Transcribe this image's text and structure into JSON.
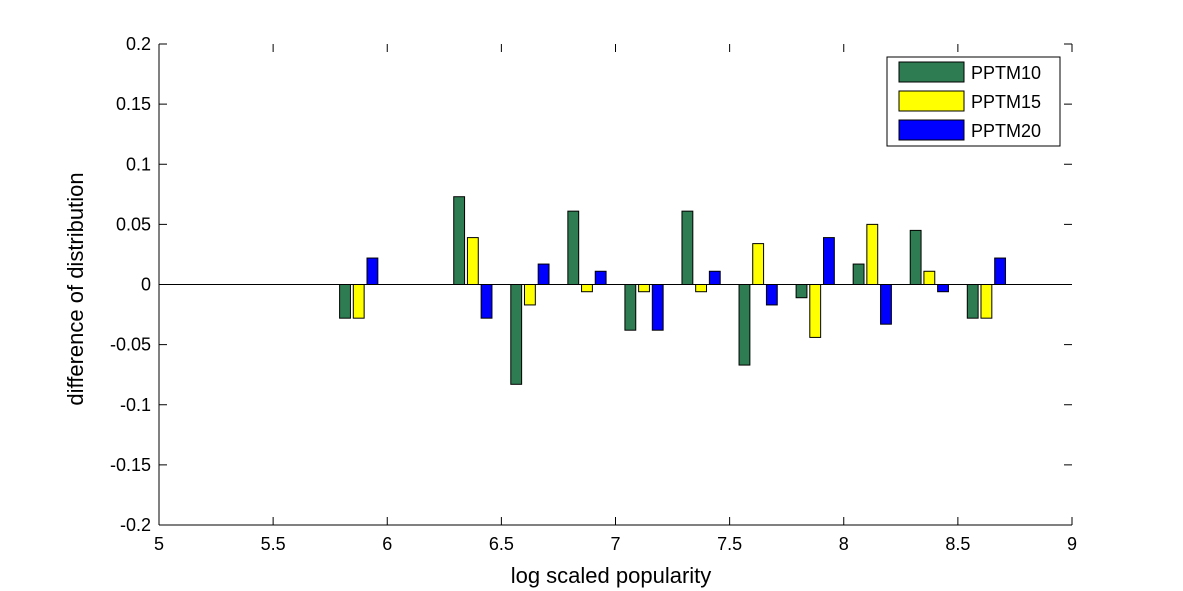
{
  "chart_data": {
    "type": "bar",
    "xlabel": "log scaled popularity",
    "ylabel": "difference of distribution",
    "xlim": [
      5,
      9
    ],
    "ylim": [
      -0.2,
      0.2
    ],
    "xticks": [
      "5",
      "5.5",
      "6",
      "6.5",
      "7",
      "7.5",
      "8",
      "8.5",
      "9"
    ],
    "yticks": [
      "-0.2",
      "-0.15",
      "-0.1",
      "-0.05",
      "0",
      "0.05",
      "0.1",
      "0.15",
      "0.2"
    ],
    "grid": false,
    "legend_position": "top-right",
    "x": [
      5.875,
      6.375,
      6.625,
      6.875,
      7.125,
      7.375,
      7.625,
      7.875,
      8.125,
      8.375,
      8.625
    ],
    "series": [
      {
        "name": "PPTM10",
        "color": "#2e7d52",
        "values": [
          -0.028,
          0.073,
          -0.083,
          0.061,
          -0.038,
          0.061,
          -0.067,
          -0.011,
          0.017,
          0.045,
          -0.028
        ]
      },
      {
        "name": "PPTM15",
        "color": "#ffff00",
        "values": [
          -0.028,
          0.039,
          -0.017,
          -0.006,
          -0.006,
          -0.006,
          0.034,
          -0.044,
          0.05,
          0.011,
          -0.028
        ]
      },
      {
        "name": "PPTM20",
        "color": "#0000ff",
        "values": [
          0.022,
          -0.028,
          0.017,
          0.011,
          -0.038,
          0.011,
          -0.017,
          0.039,
          -0.033,
          -0.006,
          0.022
        ]
      }
    ]
  }
}
